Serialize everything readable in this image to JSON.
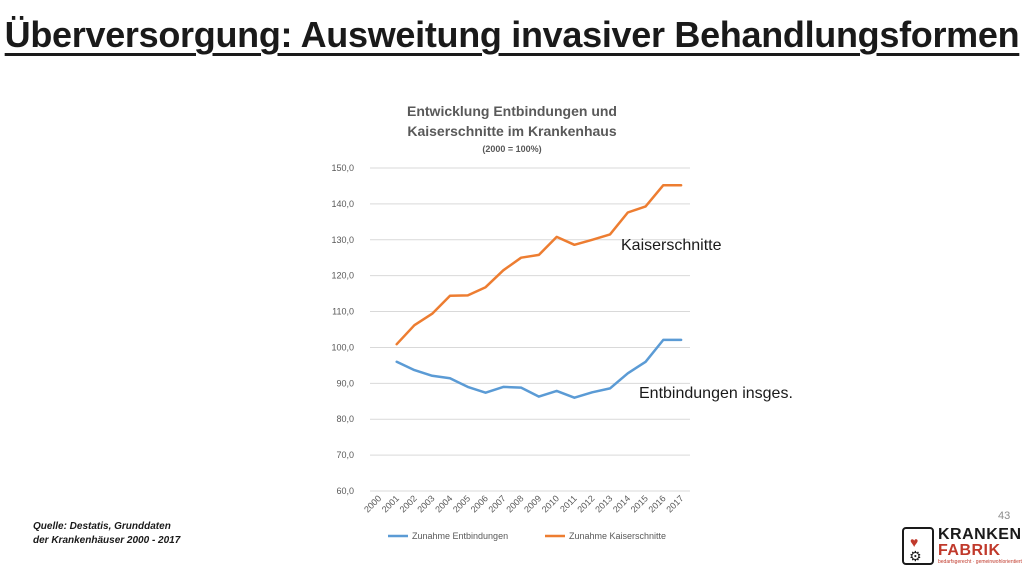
{
  "slide": {
    "title": "Überversorgung: Ausweitung invasiver Behandlungsformen",
    "page_number": "43",
    "source_line1": "Quelle: Destatis, Grunddaten",
    "source_line2": "der Krankenhäuser 2000 - 2017",
    "callout_caesarean": "Kaiserschnitte",
    "callout_births": "Entbindungen insges."
  },
  "logo": {
    "word1": "KRANKEN",
    "word2": "FABRIK",
    "tagline": "bedarfsgerecht · gemeinwohlorientiert",
    "heart_icon": "heart-icon",
    "gear_icon": "gear-icon"
  },
  "chart_data": {
    "type": "line",
    "title_lines": [
      "Entwicklung Entbindungen und",
      "Kaiserschnitte im Krankenhaus"
    ],
    "subtitle": "(2000 = 100%)",
    "x": [
      "2000",
      "2001",
      "2002",
      "2003",
      "2004",
      "2005",
      "2006",
      "2007",
      "2008",
      "2009",
      "2010",
      "2011",
      "2012",
      "2013",
      "2014",
      "2015",
      "2016",
      "2017"
    ],
    "ylim": [
      60,
      150
    ],
    "yticks": [
      "60,0",
      "70,0",
      "80,0",
      "90,0",
      "100,0",
      "110,0",
      "120,0",
      "130,0",
      "140,0",
      "150,0"
    ],
    "grid": true,
    "legend_position": "bottom",
    "series": [
      {
        "name": "Zunahme Entbindungen",
        "color": "#5b9bd5",
        "values": [
          null,
          96.0,
          93.7,
          92.1,
          91.4,
          89.0,
          87.4,
          89.0,
          88.8,
          86.3,
          87.9,
          86.0,
          87.5,
          88.6,
          92.8,
          96.0,
          102.1,
          102.1
        ]
      },
      {
        "name": "Zunahme Kaiserschnitte",
        "color": "#ed7d31",
        "values": [
          null,
          100.9,
          106.2,
          109.4,
          114.4,
          114.5,
          116.8,
          121.5,
          125.0,
          125.8,
          130.8,
          128.6,
          130.0,
          131.5,
          137.6,
          139.3,
          145.2,
          145.2
        ]
      }
    ]
  }
}
